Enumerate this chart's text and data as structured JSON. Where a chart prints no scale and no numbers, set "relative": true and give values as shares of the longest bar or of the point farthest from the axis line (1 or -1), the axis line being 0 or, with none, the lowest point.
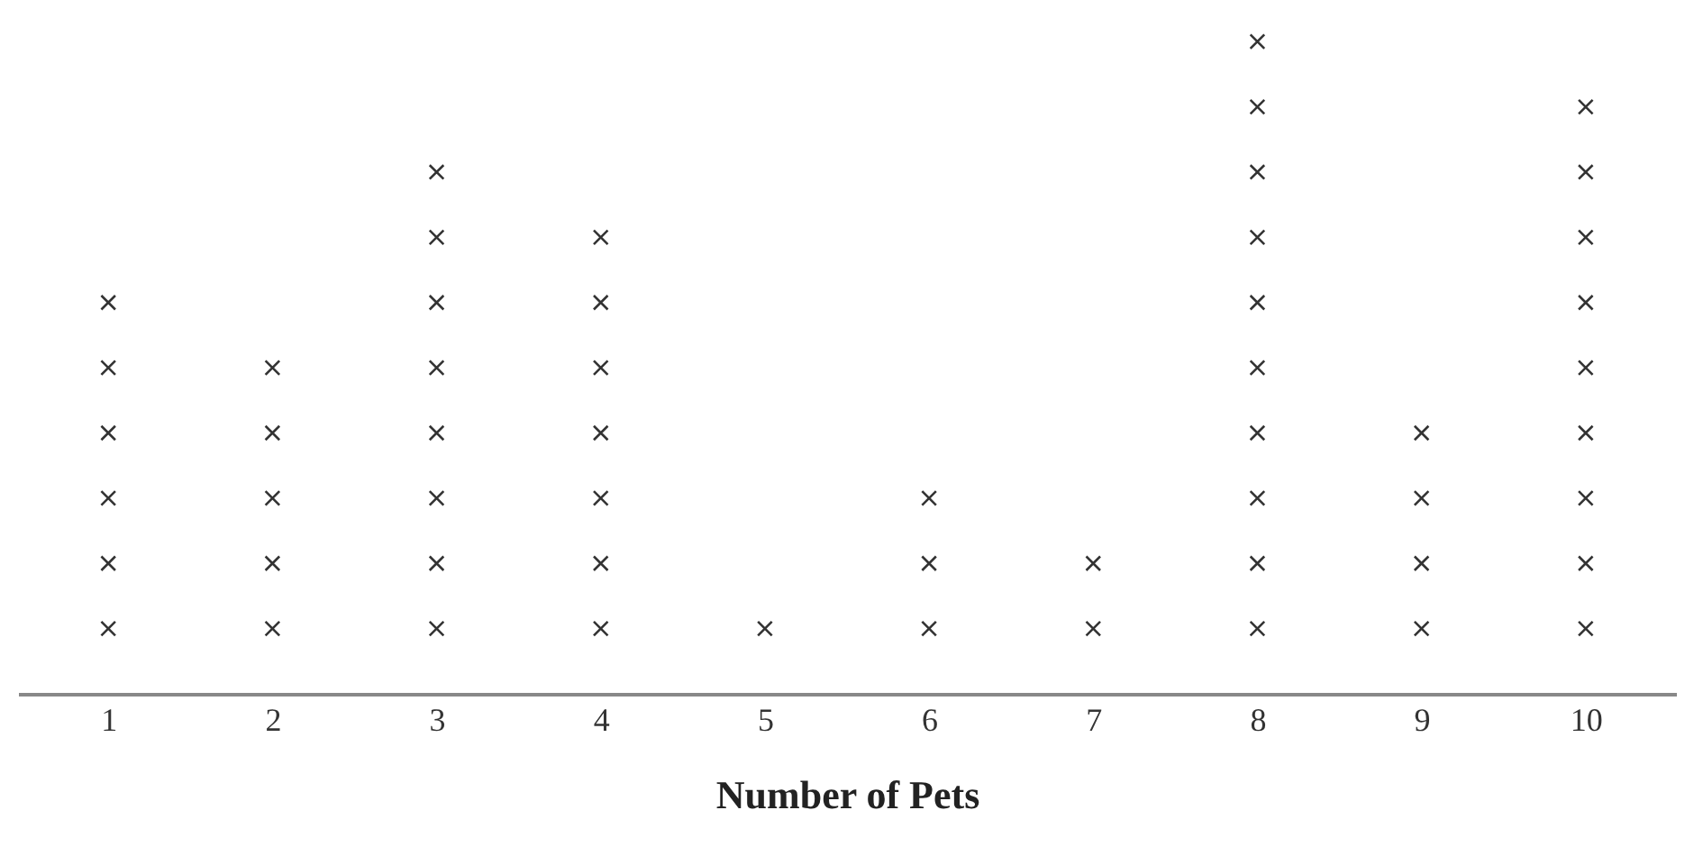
{
  "chart_data": {
    "type": "scatter",
    "xlabel": "Number of Pets",
    "marker": "cross",
    "grid": false,
    "tick_labels": "x",
    "relative": true,
    "xlim": [
      0.45,
      10.55
    ],
    "xticks": [
      1,
      2,
      3,
      4,
      5,
      6,
      7,
      8,
      9,
      10
    ],
    "series": [
      {
        "color": "#333333",
        "x": [
          1,
          1,
          1,
          1,
          1,
          1,
          2,
          2,
          2,
          2,
          2,
          3,
          3,
          3,
          3,
          3,
          3,
          3,
          3,
          4,
          4,
          4,
          4,
          4,
          4,
          4,
          5,
          6,
          6,
          6,
          7,
          7,
          8,
          8,
          8,
          8,
          8,
          8,
          8,
          8,
          8,
          8,
          9,
          9,
          9,
          9,
          10,
          10,
          10,
          10,
          10,
          10,
          10,
          10,
          10
        ],
        "values": [
          0.1,
          0.2,
          0.3,
          0.4,
          0.5,
          0.6,
          0.1,
          0.2,
          0.3,
          0.4,
          0.5,
          0.1,
          0.2,
          0.3,
          0.4,
          0.5,
          0.6,
          0.7,
          0.8,
          0.1,
          0.2,
          0.3,
          0.4,
          0.5,
          0.6,
          0.7,
          0.1,
          0.1,
          0.2,
          0.3,
          0.1,
          0.2,
          0.1,
          0.2,
          0.3,
          0.4,
          0.5,
          0.6,
          0.7,
          0.8,
          0.9,
          1,
          0.1,
          0.2,
          0.3,
          0.4,
          0.1,
          0.2,
          0.3,
          0.4,
          0.5,
          0.6,
          0.7,
          0.8,
          0.9
        ]
      }
    ]
  }
}
